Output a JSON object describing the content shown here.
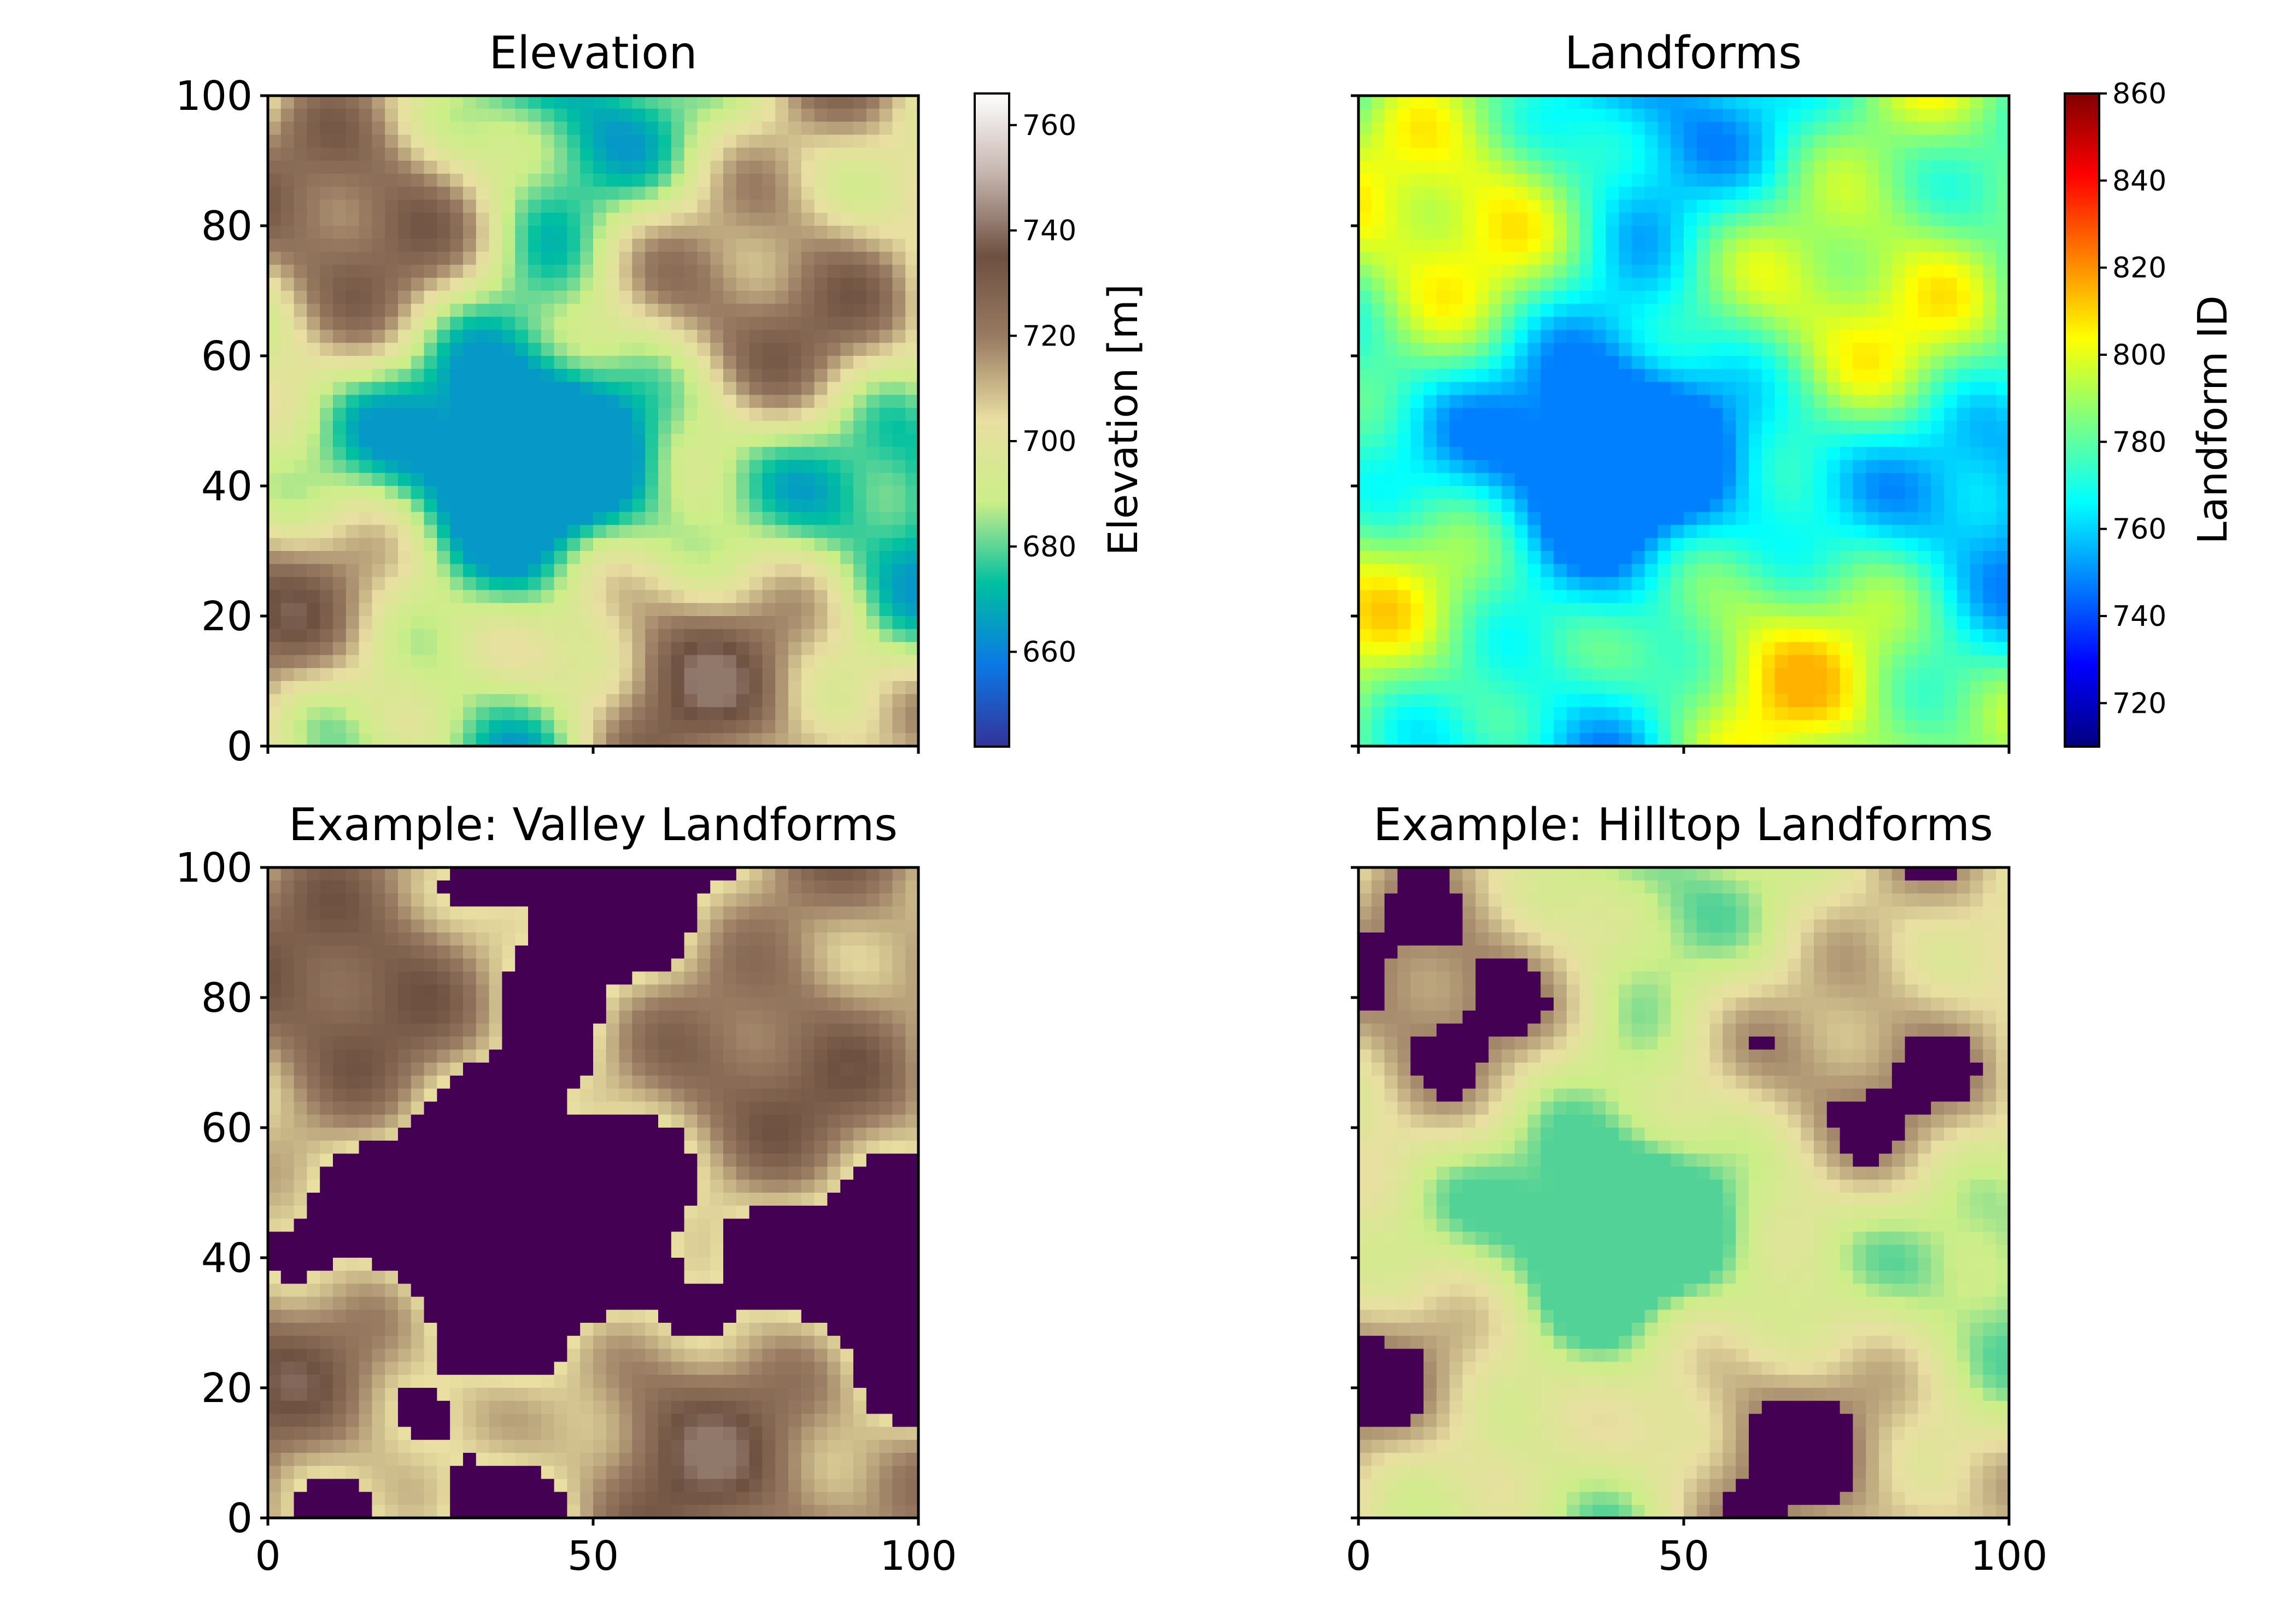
{
  "colors": {
    "terrain": [
      "#333399",
      "#0b78e6",
      "#00c0a0",
      "#ccee88",
      "#e9dfa2",
      "#9a7c63",
      "#6d5040",
      "#c4b3ac",
      "#ffffff"
    ],
    "jet": [
      "#00007f",
      "#0000ff",
      "#007fff",
      "#00ffff",
      "#7fff7f",
      "#ffff00",
      "#ff7f00",
      "#ff0000",
      "#7f0000"
    ],
    "mask": "#440154",
    "valley_fill": "#e6d0c8",
    "hill_fill": "#a8a0c8"
  },
  "chart_data": [
    {
      "type": "heatmap",
      "title": "Elevation",
      "xlim": [
        0,
        100
      ],
      "ylim": [
        0,
        100
      ],
      "yticks": [
        "0",
        "20",
        "40",
        "60",
        "80",
        "100"
      ],
      "xticks": [],
      "colorbar": {
        "label": "Elevation [m]",
        "range": [
          642,
          766
        ],
        "ticks": [
          "660",
          "680",
          "700",
          "720",
          "740",
          "760"
        ],
        "tick_values": [
          660,
          680,
          700,
          720,
          740,
          760
        ],
        "colormap": "terrain"
      }
    },
    {
      "type": "heatmap",
      "title": "Landforms",
      "xlim": [
        0,
        100
      ],
      "ylim": [
        0,
        100
      ],
      "yticks": [],
      "xticks": [],
      "colorbar": {
        "label": "Landform ID",
        "range": [
          710,
          860
        ],
        "ticks": [
          "720",
          "740",
          "760",
          "780",
          "800",
          "820",
          "840",
          "860"
        ],
        "tick_values": [
          720,
          740,
          760,
          780,
          800,
          820,
          840,
          860
        ],
        "colormap": "jet"
      }
    },
    {
      "type": "heatmap",
      "title": "Example: Valley Landforms",
      "xlim": [
        0,
        100
      ],
      "ylim": [
        0,
        100
      ],
      "yticks": [
        "0",
        "20",
        "40",
        "60",
        "80",
        "100"
      ],
      "xticks": [
        "0",
        "50",
        "100"
      ]
    },
    {
      "type": "heatmap",
      "title": "Example: Hilltop Landforms",
      "xlim": [
        0,
        100
      ],
      "ylim": [
        0,
        100
      ],
      "yticks": [],
      "xticks": [
        "0",
        "50",
        "100"
      ]
    }
  ]
}
